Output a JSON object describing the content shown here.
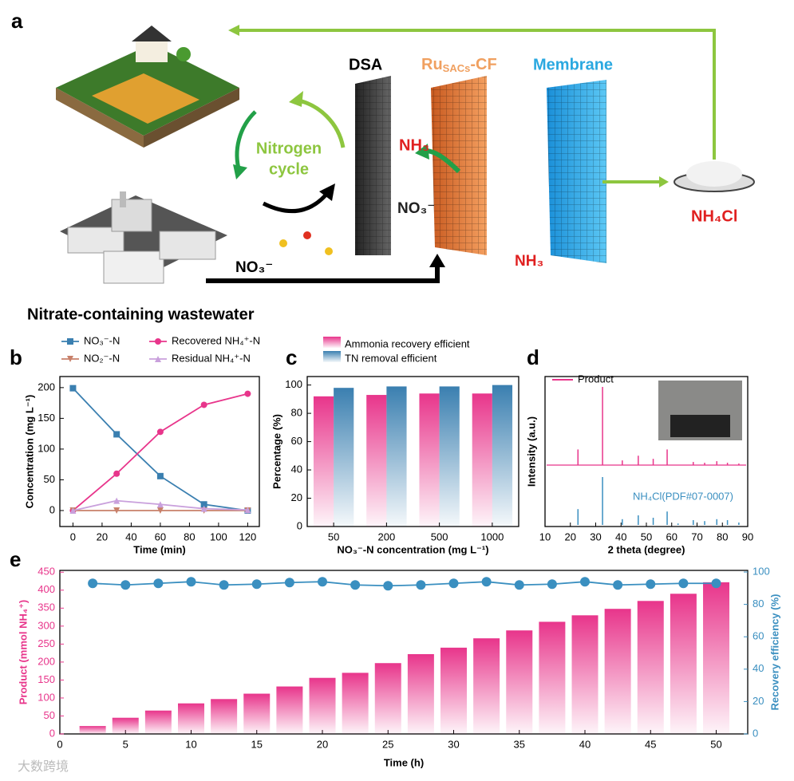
{
  "panel_a": {
    "label": "a",
    "dsa": "DSA",
    "ru": "Ru",
    "ru_sub": "SACs",
    "ru_suffix": "-CF",
    "membrane": "Membrane",
    "cycle_lines": [
      "Nitrogen",
      "cycle"
    ],
    "nh3_top": "NH₃",
    "no3_mid": "NO₃⁻",
    "nh3_bottom": "NH₃",
    "no3_left": "NO₃⁻",
    "product": "NH₄Cl",
    "source": "Nitrate-containing wastewater"
  },
  "chart_data": [
    {
      "type": "line",
      "panel": "b",
      "x_label": "Time (min)",
      "y_label": "Concentration (mg L⁻¹)",
      "x": [
        0,
        30,
        60,
        90,
        120
      ],
      "series": [
        {
          "name": "NO₃⁻-N",
          "color": "#3a7fb0",
          "marker": "square",
          "values": [
            199,
            124,
            56,
            10,
            0
          ]
        },
        {
          "name": "Recovered NH₄⁺-N",
          "color": "#e8358b",
          "marker": "circle",
          "values": [
            0,
            60,
            128,
            172,
            190
          ]
        },
        {
          "name": "NO₂⁻-N",
          "color": "#c8806a",
          "marker": "triangle-down",
          "values": [
            0,
            0,
            0,
            0,
            0
          ]
        },
        {
          "name": "Residual   NH₄⁺-N",
          "color": "#c9a0dc",
          "marker": "triangle-up",
          "values": [
            0,
            16,
            10,
            3,
            1
          ]
        }
      ],
      "xlim": [
        -9,
        128
      ],
      "xticks": [
        0,
        20,
        40,
        60,
        80,
        100,
        120
      ],
      "ylim": [
        -26,
        218
      ],
      "yticks": [
        0,
        50,
        100,
        150,
        200
      ]
    },
    {
      "type": "bar",
      "panel": "c",
      "x_label": "NO₃⁻-N concentration (mg L⁻¹)",
      "y_label": "Percentage (%)",
      "categories": [
        "50",
        "200",
        "500",
        "1000"
      ],
      "series": [
        {
          "name": "Ammonia recovery efficient",
          "color": "#e8358b",
          "values": [
            92,
            93,
            94,
            94
          ]
        },
        {
          "name": "TN removal efficient",
          "color": "#3a7fb0",
          "values": [
            98,
            99,
            99,
            100
          ]
        }
      ],
      "ylim": [
        0,
        106
      ],
      "yticks": [
        0,
        20,
        40,
        60,
        80,
        100
      ]
    },
    {
      "type": "xrd",
      "panel": "d",
      "x_label": "2 theta (degree)",
      "y_label": "Intensity (a.u.)",
      "series": [
        {
          "name": "Product",
          "color": "#e8358b",
          "x": [
            23,
            32.7,
            40.5,
            46.8,
            52.7,
            58.2,
            68.5,
            73,
            77.8,
            82,
            86.5
          ],
          "values": [
            20,
            100,
            6,
            12,
            8,
            20,
            4,
            3,
            5,
            3,
            2
          ]
        },
        {
          "name": "NH₄Cl(PDF#07-0007)",
          "color": "#3a8fc0",
          "x": [
            23,
            32.7,
            40.5,
            46.8,
            52.7,
            58.2,
            62.5,
            68.5,
            73,
            77.8,
            82,
            86.5
          ],
          "values": [
            33,
            100,
            12,
            20,
            15,
            28,
            3,
            10,
            8,
            12,
            10,
            5
          ]
        }
      ],
      "xlim": [
        10,
        90
      ],
      "xticks": [
        10,
        20,
        30,
        40,
        50,
        60,
        70,
        80,
        90
      ]
    },
    {
      "type": "bar-line",
      "panel": "e",
      "x_label": "Time (h)",
      "y_label": "Product (mmol NH₄⁺)",
      "y2_label": "Recovery efficiency (%)",
      "x": [
        2.5,
        5,
        7.5,
        10,
        12.5,
        15,
        17.5,
        20,
        22.5,
        25,
        27.5,
        30,
        32.5,
        35,
        37.5,
        40,
        42.5,
        45,
        47.5,
        50
      ],
      "series": [
        {
          "name": "Product",
          "color": "#e8358b",
          "values": [
            22,
            45,
            65,
            85,
            97,
            112,
            132,
            156,
            170,
            197,
            222,
            240,
            266,
            288,
            312,
            330,
            348,
            370,
            390,
            422
          ]
        },
        {
          "name": "Recovery efficiency",
          "color": "#3a8fc0",
          "axis": "y2",
          "values": [
            93,
            92,
            93,
            94,
            92,
            92.5,
            93.5,
            94,
            92,
            91.5,
            92,
            93,
            94,
            92,
            92.5,
            94,
            92,
            92.5,
            93,
            93
          ]
        }
      ],
      "xlim": [
        0,
        52.4
      ],
      "xticks": [
        0,
        5,
        10,
        15,
        20,
        25,
        30,
        35,
        40,
        45,
        50
      ],
      "ylim": [
        0,
        455
      ],
      "yticks": [
        0,
        50,
        100,
        150,
        200,
        250,
        300,
        350,
        400,
        450
      ],
      "y2lim": [
        0,
        101
      ],
      "y2ticks": [
        0,
        20,
        40,
        60,
        80,
        100
      ]
    }
  ],
  "watermark": "大数跨境"
}
